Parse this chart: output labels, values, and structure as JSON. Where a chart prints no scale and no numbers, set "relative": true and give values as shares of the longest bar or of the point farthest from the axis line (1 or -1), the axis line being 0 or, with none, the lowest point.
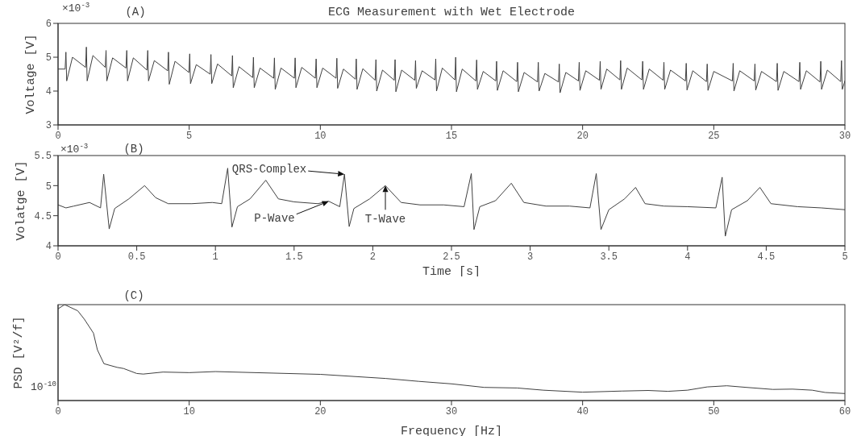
{
  "chart_data": [
    {
      "type": "line",
      "title": "(A)",
      "subtitle": "ECG Measurement with Wet Electrode",
      "ylabel": "Voltage [V]",
      "xlim": [
        0,
        30
      ],
      "xticks": [
        0,
        5,
        10,
        15,
        20,
        25,
        30
      ],
      "ylim": [
        3,
        6
      ],
      "yticks": [
        3,
        4,
        5,
        6
      ],
      "annotations": [
        "×10$^{-3}$"
      ],
      "series": [
        {
          "color": "#404040",
          "x": [
            0,
            0.27,
            0.3,
            0.33,
            0.55,
            1.05,
            1.08,
            1.11,
            1.33,
            1.8,
            1.83,
            1.86,
            2.08,
            2.59,
            2.62,
            2.65,
            2.87,
            3.39,
            3.42,
            3.45,
            3.67,
            4.18,
            4.21,
            4.24,
            4.46,
            4.99,
            5.02,
            5.05,
            5.27,
            5.8,
            5.83,
            5.86,
            6.08,
            6.62,
            6.65,
            6.68,
            6.9,
            7.42,
            7.45,
            7.48,
            7.7,
            8.22,
            8.25,
            8.28,
            8.5,
            9.01,
            9.04,
            9.07,
            9.29,
            9.81,
            9.84,
            9.87,
            10.09,
            10.6,
            10.63,
            10.66,
            10.88,
            11.34,
            11.37,
            11.4,
            11.62,
            12.09,
            12.12,
            12.15,
            12.37,
            12.82,
            12.85,
            12.88,
            13.1,
            13.6,
            13.63,
            13.66,
            13.88,
            14.37,
            14.4,
            14.43,
            14.65,
            15.13,
            15.16,
            15.19,
            15.41,
            15.93,
            15.96,
            15.99,
            16.21,
            16.69,
            16.72,
            16.75,
            16.97,
            17.49,
            17.52,
            17.55,
            17.77,
            18.28,
            18.31,
            18.34,
            18.56,
            19.08,
            19.11,
            19.14,
            19.36,
            19.84,
            19.87,
            19.9,
            20.12,
            20.64,
            20.67,
            20.7,
            20.92,
            21.42,
            21.45,
            21.48,
            21.7,
            22.26,
            22.29,
            22.32,
            22.54,
            23.07,
            23.1,
            23.13,
            23.35,
            23.92,
            23.95,
            23.98,
            24.2,
            24.72,
            24.75,
            24.78,
            25.0,
            25.71,
            25.74,
            25.77,
            25.99,
            26.54,
            26.57,
            26.6,
            26.82,
            27.39,
            27.42,
            27.45,
            27.67,
            28.25,
            28.28,
            28.31,
            28.53,
            29.05,
            29.08,
            29.11,
            29.33,
            29.84,
            29.87,
            29.9,
            30
          ],
          "values": [
            4.65,
            4.65,
            5.15,
            4.3,
            5.0,
            4.7,
            5.3,
            4.3,
            5.05,
            4.7,
            5.2,
            4.3,
            4.98,
            4.68,
            5.2,
            4.3,
            4.98,
            4.62,
            5.2,
            4.3,
            4.9,
            4.6,
            5.15,
            4.2,
            4.88,
            4.55,
            5.1,
            4.22,
            4.78,
            4.5,
            5.08,
            4.22,
            4.8,
            4.45,
            5.05,
            4.1,
            4.72,
            4.4,
            5.0,
            4.1,
            4.68,
            4.38,
            4.98,
            4.05,
            4.68,
            4.38,
            4.98,
            4.1,
            4.7,
            4.38,
            4.95,
            4.1,
            4.68,
            4.38,
            4.97,
            4.08,
            4.65,
            4.35,
            4.95,
            4.05,
            4.66,
            4.32,
            4.93,
            4.0,
            4.62,
            4.32,
            4.93,
            3.98,
            4.62,
            4.32,
            4.9,
            4.08,
            4.6,
            4.33,
            4.95,
            4.0,
            4.68,
            4.33,
            5.0,
            3.98,
            4.65,
            4.3,
            4.92,
            4.05,
            4.58,
            4.3,
            4.88,
            4.02,
            4.6,
            4.28,
            4.85,
            3.98,
            4.55,
            4.27,
            4.85,
            4.0,
            4.52,
            4.27,
            4.8,
            3.95,
            4.55,
            4.3,
            4.85,
            4.02,
            4.6,
            4.32,
            4.88,
            4.05,
            4.65,
            4.33,
            4.9,
            4.05,
            4.68,
            4.33,
            4.88,
            4.05,
            4.65,
            4.32,
            4.85,
            4.05,
            4.62,
            4.3,
            4.82,
            4.03,
            4.6,
            4.28,
            4.8,
            4.02,
            4.58,
            4.3,
            4.82,
            4.0,
            4.6,
            4.3,
            4.8,
            4.03,
            4.58,
            4.28,
            4.82,
            4.02,
            4.58,
            4.28,
            4.85,
            4.05,
            4.6,
            4.27,
            4.88,
            4.05,
            4.62,
            4.28,
            4.9,
            4.05,
            4.3
          ]
        }
      ]
    },
    {
      "type": "line",
      "title": "(B)",
      "xlabel": "Time [s]",
      "ylabel": "Volatge [V]",
      "xlim": [
        0,
        5
      ],
      "xticks": [
        0,
        0.5,
        1,
        1.5,
        2,
        2.5,
        3,
        3.5,
        4,
        4.5,
        5
      ],
      "ylim": [
        4,
        5.5
      ],
      "yticks": [
        4,
        4.5,
        5,
        5.5
      ],
      "annotations": [
        "×10$^{-3}$",
        {
          "text": "QRS-Complex",
          "x": 1.82,
          "y": 5.19
        },
        {
          "text": "P-Wave",
          "x": 1.72,
          "y": 4.74
        },
        {
          "text": "T-Wave",
          "x": 2.08,
          "y": 5.0
        }
      ],
      "series": [
        {
          "color": "#404040",
          "x": [
            0,
            0.05,
            0.1,
            0.2,
            0.27,
            0.29,
            0.325,
            0.36,
            0.45,
            0.55,
            0.62,
            0.7,
            0.85,
            0.98,
            1.04,
            1.078,
            1.105,
            1.14,
            1.22,
            1.32,
            1.4,
            1.5,
            1.65,
            1.72,
            1.79,
            1.82,
            1.85,
            1.88,
            1.98,
            2.08,
            2.18,
            2.3,
            2.45,
            2.58,
            2.626,
            2.643,
            2.68,
            2.78,
            2.88,
            2.96,
            3.1,
            3.25,
            3.38,
            3.42,
            3.45,
            3.5,
            3.6,
            3.67,
            3.73,
            3.85,
            4.0,
            4.18,
            4.22,
            4.24,
            4.28,
            4.38,
            4.46,
            4.53,
            4.7,
            4.85,
            5.0
          ],
          "values": [
            4.68,
            4.63,
            4.66,
            4.72,
            4.63,
            5.19,
            4.28,
            4.62,
            4.78,
            5.0,
            4.8,
            4.7,
            4.7,
            4.72,
            4.7,
            5.29,
            4.31,
            4.65,
            4.78,
            5.09,
            4.78,
            4.73,
            4.7,
            4.74,
            4.65,
            5.19,
            4.32,
            4.62,
            4.78,
            5.0,
            4.72,
            4.68,
            4.68,
            4.65,
            5.2,
            4.27,
            4.65,
            4.75,
            5.04,
            4.72,
            4.66,
            4.66,
            4.63,
            5.2,
            4.27,
            4.6,
            4.78,
            4.97,
            4.7,
            4.66,
            4.65,
            4.63,
            5.14,
            4.16,
            4.6,
            4.75,
            4.97,
            4.7,
            4.65,
            4.63,
            4.6
          ]
        }
      ]
    },
    {
      "type": "line",
      "title": "(C)",
      "xlabel": "Frequency [Hz]",
      "ylabel": "PSD [V²/f]",
      "relative": true,
      "xlim": [
        0,
        60
      ],
      "xticks": [
        0,
        10,
        20,
        30,
        40,
        50,
        60
      ],
      "annotations": [
        "10$^{-10}$"
      ],
      "series": [
        {
          "color": "#404040",
          "x": [
            0,
            0.5,
            1.5,
            2,
            2.7,
            3,
            3.5,
            4.5,
            5,
            6,
            6.5,
            8,
            10,
            12,
            15,
            20,
            25,
            27.5,
            30,
            32.5,
            35,
            37,
            40,
            43,
            45,
            46.5,
            48,
            49.5,
            51,
            52.5,
            54.5,
            56,
            57.5,
            58.5,
            60
          ],
          "values": [
            0.956,
            1.0,
            0.936,
            0.849,
            0.703,
            0.529,
            0.384,
            0.346,
            0.334,
            0.282,
            0.276,
            0.297,
            0.291,
            0.302,
            0.291,
            0.273,
            0.23,
            0.2,
            0.174,
            0.137,
            0.131,
            0.108,
            0.087,
            0.099,
            0.105,
            0.096,
            0.108,
            0.142,
            0.154,
            0.137,
            0.116,
            0.119,
            0.108,
            0.084,
            0.073
          ]
        }
      ]
    }
  ]
}
